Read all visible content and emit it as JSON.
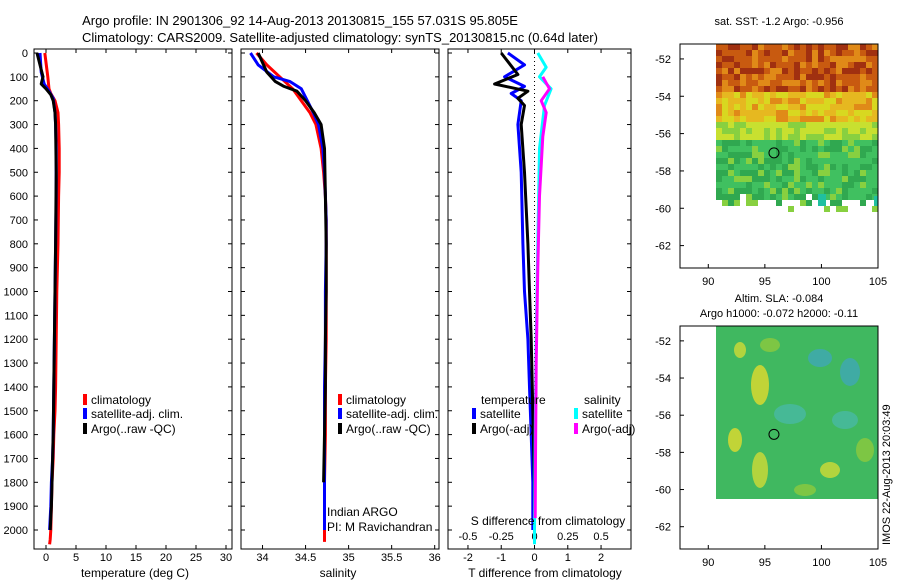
{
  "header": {
    "line1": "Argo profile: IN 2901306_92 14-Aug-2013 20130815_155 57.031S 95.805E",
    "line2": "Climatology: CARS2009. Satellite-adjusted climatology: synTS_20130815.nc (0.64d later)"
  },
  "depth_ticks": [
    0,
    100,
    200,
    300,
    400,
    500,
    600,
    700,
    800,
    900,
    1000,
    1100,
    1200,
    1300,
    1400,
    1500,
    1600,
    1700,
    1800,
    1900,
    2000
  ],
  "credit": "IMOS 22-Aug-2013 20:03:49",
  "colors": {
    "climatology": "#ff0000",
    "satellite": "#0000ff",
    "argo": "#000000",
    "sal_sat": "#00ffff",
    "sal_argo": "#ff00ff"
  },
  "chart_data": [
    {
      "type": "line",
      "xlabel": "temperature (deg C)",
      "xticks": [
        "0",
        "5",
        "10",
        "15",
        "20",
        "25",
        "30"
      ],
      "xlim": [
        -2,
        31
      ],
      "ylim": [
        2050,
        0
      ],
      "legend": [
        "climatology",
        "satellite-adj. clim.",
        "Argo(..raw -QC)"
      ],
      "legend_placement": "center-right",
      "series": [
        {
          "name": "climatology",
          "color": "#ff0000",
          "x": [
            -0.2,
            0.3,
            0.5,
            0.8,
            1.5,
            2.0,
            2.1,
            2.2,
            2.2,
            2.1,
            2.0,
            1.8,
            1.7,
            1.6,
            1.5,
            1.3,
            1.2,
            1.0,
            0.9,
            0.8,
            0.7,
            0.6
          ],
          "y": [
            0,
            100,
            150,
            170,
            200,
            250,
            300,
            400,
            500,
            600,
            800,
            1000,
            1200,
            1400,
            1500,
            1600,
            1700,
            1800,
            1900,
            2000,
            2040,
            2060
          ]
        },
        {
          "name": "satellite-adj. clim.",
          "color": "#0000ff",
          "x": [
            -1.0,
            -0.8,
            -0.3,
            0.5,
            1.2,
            1.5,
            1.6,
            1.7,
            1.7,
            1.6,
            1.5,
            1.4,
            1.3,
            1.2,
            1.1,
            0.9,
            0.8,
            0.6
          ],
          "y": [
            0,
            80,
            130,
            160,
            190,
            250,
            300,
            400,
            600,
            800,
            1000,
            1200,
            1400,
            1600,
            1700,
            1800,
            1900,
            2000
          ]
        },
        {
          "name": "Argo(..raw -QC)",
          "color": "#000000",
          "x": [
            -1.5,
            -0.5,
            -0.8,
            0.0,
            0.8,
            1.2,
            1.5,
            1.6,
            1.7,
            1.6,
            1.5,
            1.4,
            1.3,
            1.2,
            1.1,
            1.0,
            0.9,
            0.7
          ],
          "y": [
            0,
            100,
            130,
            150,
            175,
            200,
            250,
            300,
            500,
            800,
            1000,
            1200,
            1400,
            1600,
            1700,
            1800,
            1900,
            2000
          ]
        }
      ]
    },
    {
      "type": "line",
      "xlabel": "salinity",
      "xticks": [
        "34",
        "34.5",
        "35",
        "35.5",
        "36"
      ],
      "xlim": [
        33.75,
        36.05
      ],
      "ylim": [
        2050,
        0
      ],
      "legend": [
        "climatology",
        "satellite-adj. clim.",
        "Argo(..raw -QC)"
      ],
      "legend_placement": "center-right",
      "annotations": [
        "Indian ARGO",
        "PI: M Ravichandran"
      ],
      "series": [
        {
          "name": "climatology",
          "color": "#ff0000",
          "x": [
            33.93,
            34.05,
            34.2,
            34.35,
            34.45,
            34.55,
            34.62,
            34.68,
            34.71,
            34.73,
            34.74,
            34.74,
            34.74,
            34.74,
            34.73,
            34.73,
            34.72,
            34.72,
            34.72,
            34.72
          ],
          "y": [
            0,
            50,
            100,
            150,
            200,
            250,
            300,
            400,
            500,
            600,
            700,
            800,
            1000,
            1200,
            1400,
            1600,
            1800,
            1900,
            2000,
            2050
          ]
        },
        {
          "name": "satellite-adj. clim.",
          "color": "#0000ff",
          "x": [
            33.86,
            33.95,
            34.13,
            34.32,
            34.45,
            34.52,
            34.59,
            34.65,
            34.7,
            34.72,
            34.73,
            34.74,
            34.74,
            34.73,
            34.73,
            34.72,
            34.72,
            34.72,
            34.72,
            34.72
          ],
          "y": [
            0,
            50,
            100,
            120,
            150,
            200,
            250,
            300,
            400,
            500,
            600,
            700,
            800,
            1000,
            1200,
            1400,
            1600,
            1800,
            1900,
            2000
          ]
        },
        {
          "name": "Argo(..raw -QC)",
          "color": "#000000",
          "x": [
            33.95,
            34.05,
            34.15,
            34.25,
            34.4,
            34.5,
            34.6,
            34.68,
            34.72,
            34.73,
            34.74,
            34.74,
            34.73,
            34.73,
            34.72,
            34.71
          ],
          "y": [
            0,
            80,
            120,
            140,
            160,
            200,
            250,
            300,
            400,
            600,
            800,
            1000,
            1200,
            1400,
            1600,
            1800
          ]
        }
      ]
    },
    {
      "type": "line",
      "xlabel": "T difference from climatology",
      "xlabel_top": "S difference from climatology",
      "xticks": [
        "-2",
        "-1",
        "0",
        "1",
        "2"
      ],
      "xticks_top": [
        "-0.5",
        "-0.25",
        "0",
        "0.25",
        "0.5"
      ],
      "xlim": [
        -2.6,
        2.9
      ],
      "ylim": [
        2050,
        0
      ],
      "legend_groups": [
        {
          "title": "temperature",
          "items": [
            "satellite",
            "Argo(-adj)"
          ]
        },
        {
          "title": "salinity",
          "items": [
            "satellite",
            "Argo(-adj)"
          ]
        }
      ],
      "legend_placement": "center",
      "series": [
        {
          "name": "temperature satellite",
          "color": "#0000ff",
          "x": [
            -0.8,
            -0.3,
            -0.9,
            -0.3,
            -0.7,
            -0.4,
            -0.5,
            -0.4,
            -0.35,
            -0.3,
            -0.2,
            -0.15,
            -0.1,
            -0.05,
            -0.05
          ],
          "y": [
            0,
            50,
            100,
            140,
            170,
            200,
            300,
            500,
            800,
            1000,
            1200,
            1400,
            1600,
            1800,
            2000
          ]
        },
        {
          "name": "temperature Argo(-adj)",
          "color": "#000000",
          "x": [
            -1.0,
            -0.5,
            -1.2,
            -0.2,
            -0.5,
            -0.3,
            -0.4,
            -0.3,
            -0.2,
            -0.15,
            -0.1,
            -0.05,
            0.0,
            0.0
          ],
          "y": [
            0,
            90,
            130,
            160,
            190,
            220,
            300,
            500,
            800,
            1000,
            1200,
            1500,
            1800,
            1950
          ]
        },
        {
          "name": "salinity satellite",
          "color": "#00ffff",
          "x": [
            0.1,
            0.35,
            0.15,
            0.5,
            0.3,
            0.15,
            0.1,
            0.05,
            0.02,
            0.0,
            0.0
          ],
          "y": [
            0,
            60,
            100,
            150,
            220,
            400,
            800,
            1200,
            1600,
            2000,
            2060
          ]
        },
        {
          "name": "salinity Argo(-adj)",
          "color": "#ff00ff",
          "x": [
            0.25,
            0.45,
            0.2,
            0.35,
            0.25,
            0.15,
            0.1,
            0.05,
            0.03,
            0.02
          ],
          "y": [
            100,
            150,
            200,
            250,
            350,
            600,
            900,
            1300,
            1700,
            1950
          ]
        }
      ]
    },
    {
      "type": "heatmap",
      "title": "sat. SST: -1.2 Argo: -0.956",
      "xticks": [
        "90",
        "95",
        "100",
        "105"
      ],
      "yticks": [
        "-52",
        "-54",
        "-56",
        "-58",
        "-60",
        "-62"
      ],
      "xlim": [
        87.5,
        105
      ],
      "ylim": [
        -63.2,
        -51.2
      ],
      "marker": {
        "lon": 95.805,
        "lat": -57.031
      }
    },
    {
      "type": "heatmap",
      "title": "Altim. SLA: -0.084",
      "subtitle": "Argo h1000: -0.072 h2000: -0.11",
      "xticks": [
        "90",
        "95",
        "100",
        "105"
      ],
      "yticks": [
        "-52",
        "-54",
        "-56",
        "-58",
        "-60",
        "-62"
      ],
      "xlim": [
        87.5,
        105
      ],
      "ylim": [
        -63.2,
        -51.2
      ],
      "marker": {
        "lon": 95.805,
        "lat": -57.031
      }
    }
  ]
}
